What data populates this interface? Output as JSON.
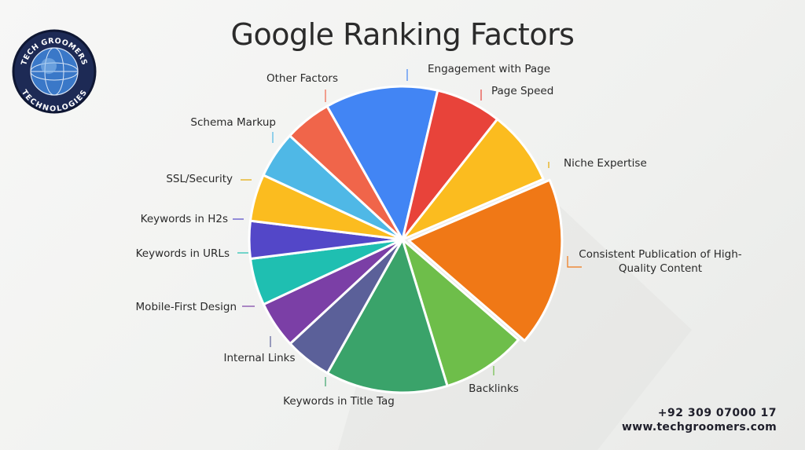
{
  "title": "Google Ranking Factors",
  "logo": {
    "top_text": "TECH GROOMERS",
    "bottom_text": "TECHNOLOGIES"
  },
  "contact": {
    "phone": "+92 309 07000 17",
    "website": "www.techgroomers.com"
  },
  "chart_data": {
    "type": "pie",
    "title": "Google Ranking Factors",
    "slices": [
      {
        "label": "Engagement with Page",
        "value": 12,
        "color": "#4285f4"
      },
      {
        "label": "Page Speed",
        "value": 7,
        "color": "#e8433a"
      },
      {
        "label": "Niche Expertise",
        "value": 8,
        "color": "#fbbc1f"
      },
      {
        "label": "Consistent Publication of High-Quality Content",
        "value": 18,
        "color": "#f07816",
        "exploded": true
      },
      {
        "label": "Backlinks",
        "value": 9,
        "color": "#6ebe4a"
      },
      {
        "label": "Keywords in Title Tag",
        "value": 13,
        "color": "#3aa36a"
      },
      {
        "label": "Internal Links",
        "value": 5,
        "color": "#5b6099"
      },
      {
        "label": "Mobile-First Design",
        "value": 5,
        "color": "#7b3fa6"
      },
      {
        "label": "Keywords in URLs",
        "value": 5,
        "color": "#1fbfb1"
      },
      {
        "label": "Keywords in H2s",
        "value": 4,
        "color": "#5347c8"
      },
      {
        "label": "SSL/Security",
        "value": 5,
        "color": "#fbbc1f"
      },
      {
        "label": "Schema Markup",
        "value": 5,
        "color": "#4fb8e6"
      },
      {
        "label": "Other Factors",
        "value": 5,
        "color": "#f0654a"
      }
    ]
  }
}
